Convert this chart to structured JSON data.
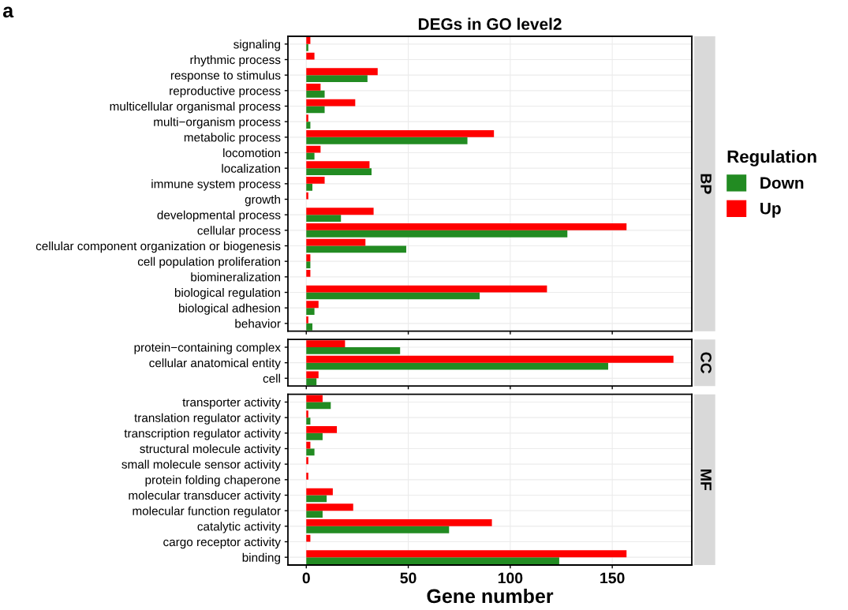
{
  "chart_data": [
    {
      "type": "bar",
      "orientation": "horizontal",
      "title": "DEGs in GO level2",
      "annotations": [
        "a",
        "BP"
      ],
      "legend_title": "Regulation",
      "legend": "right",
      "grid": true,
      "tick_labels": "y",
      "categories": [
        "signaling",
        "rhythmic process",
        "response to stimulus",
        "reproductive process",
        "multicellular organismal process",
        "multi−organism process",
        "metabolic process",
        "locomotion",
        "localization",
        "immune system process",
        "growth",
        "developmental process",
        "cellular process",
        "cellular component organization or biogenesis",
        "cell population proliferation",
        "biomineralization",
        "biological regulation",
        "biological adhesion",
        "behavior"
      ],
      "xlim": [
        -9,
        189
      ],
      "xticks": [
        0,
        50,
        100,
        150
      ],
      "series": [
        {
          "name": "Down",
          "color": "#228b22",
          "values": [
            1,
            0,
            30,
            9,
            9,
            2,
            79,
            4,
            32,
            3,
            0,
            17,
            128,
            49,
            2,
            0,
            85,
            4,
            3
          ]
        },
        {
          "name": "Up",
          "color": "#ff0000",
          "values": [
            2,
            4,
            35,
            7,
            24,
            1,
            92,
            7,
            31,
            9,
            1,
            33,
            157,
            29,
            2,
            2,
            118,
            6,
            1
          ]
        }
      ]
    },
    {
      "type": "bar",
      "orientation": "horizontal",
      "annotations": [
        "CC"
      ],
      "grid": true,
      "tick_labels": "y",
      "categories": [
        "protein−containing complex",
        "cellular anatomical entity",
        "cell"
      ],
      "xlim": [
        -9,
        189
      ],
      "xticks": [
        0,
        50,
        100,
        150
      ],
      "series": [
        {
          "color": "#228b22",
          "values": [
            46,
            148,
            5
          ]
        },
        {
          "color": "#ff0000",
          "values": [
            19,
            180,
            6
          ]
        }
      ]
    },
    {
      "type": "bar",
      "orientation": "horizontal",
      "annotations": [
        "MF"
      ],
      "xlabel": "Gene number",
      "grid": true,
      "categories": [
        "transporter activity",
        "translation regulator activity",
        "transcription regulator activity",
        "structural molecule activity",
        "small molecule sensor activity",
        "protein folding chaperone",
        "molecular transducer activity",
        "molecular function regulator",
        "catalytic activity",
        "cargo receptor activity",
        "binding"
      ],
      "xlim": [
        -9,
        189
      ],
      "xticks": [
        0,
        50,
        100,
        150
      ],
      "series": [
        {
          "color": "#228b22",
          "values": [
            12,
            2,
            8,
            4,
            0,
            0,
            10,
            8,
            70,
            0,
            124
          ]
        },
        {
          "color": "#ff0000",
          "values": [
            8,
            1,
            15,
            2,
            1,
            1,
            13,
            23,
            91,
            2,
            157
          ]
        }
      ]
    }
  ]
}
